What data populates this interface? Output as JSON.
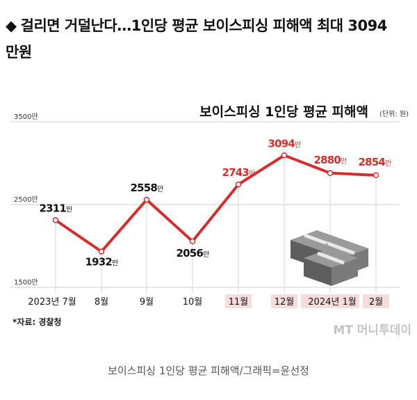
{
  "article": {
    "headline": "걸리면 거덜난다…1인당 평균 보이스피싱 피해액 최대 3094만원",
    "bullet": "◆",
    "caption": "보이스피싱 1인당 평균 피해액/그래픽=윤선정"
  },
  "chart_data": {
    "type": "line",
    "title": "보이스피싱 1인당 평균 피해액",
    "unit_note": "(단위: 원)",
    "categories": [
      "2023년 7월",
      "8월",
      "9월",
      "10월",
      "11월",
      "12월",
      "2024년 1월",
      "2월"
    ],
    "highlighted_categories": [
      "11월",
      "12월",
      "2024년 1월",
      "2월"
    ],
    "series": [
      {
        "values": [
          2311,
          1932,
          2558,
          2056,
          2743,
          3094,
          2880,
          2854
        ]
      }
    ],
    "value_labels": [
      "2311만",
      "1932만",
      "2558만",
      "2056만",
      "2743만",
      "3094만",
      "2880만",
      "2854만"
    ],
    "y_ticks": [
      1500,
      2500,
      3500
    ],
    "y_tick_labels": [
      "1500만",
      "2500만",
      "3500만"
    ],
    "ylim": [
      1500,
      3500
    ],
    "source": "*자료: 경찰청",
    "watermark": "MT 머니투데이",
    "colors": {
      "line": "#d92b2b",
      "label_dark": "#111111",
      "label_red": "#d92b2b",
      "highlight_bg": "#f6dcdc",
      "grid": "#cfcfcf",
      "dropline": "#e2e2e2",
      "axis": "#333333"
    }
  }
}
